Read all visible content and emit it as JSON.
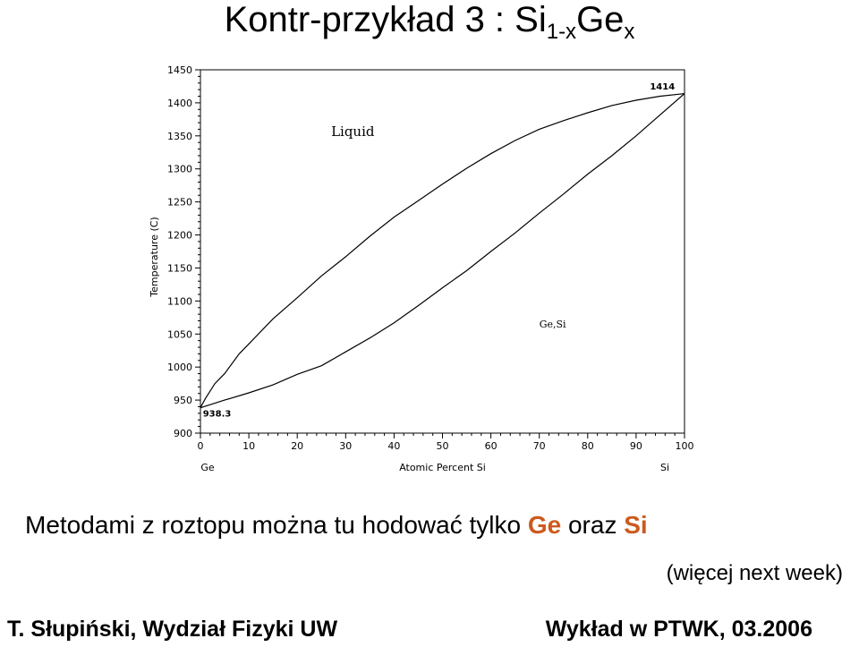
{
  "slide": {
    "title_main": "Kontr-przykład 3 : Si",
    "title_sub1": "1-x",
    "title_mid": "Ge",
    "title_sub2": "x",
    "body_prefix": "Metodami z roztopu można tu hodować tylko",
    "body_ge": "Ge",
    "body_and": "oraz",
    "body_si": "Si",
    "note": "(więcej next week)",
    "footer_left": "T. Słupiński, Wydział Fizyki UW",
    "footer_right": "Wykład w PTWK, 03.2006",
    "accent_color": "#cc5a1e"
  },
  "chart_data": {
    "type": "line",
    "title": "",
    "ylabel": "Temperature (C)",
    "xlabel": "Atomic Percent  Si",
    "x_end_left": "Ge",
    "x_end_right": "Si",
    "xlim": [
      0,
      100
    ],
    "ylim": [
      900,
      1450
    ],
    "xticks": [
      0,
      10,
      20,
      30,
      40,
      50,
      60,
      70,
      80,
      90,
      100
    ],
    "yticks": [
      900,
      950,
      1000,
      1050,
      1100,
      1150,
      1200,
      1250,
      1300,
      1350,
      1400,
      1450
    ],
    "grid": false,
    "series": [
      {
        "values_x": [
          0,
          1,
          3,
          5,
          8,
          10,
          15,
          20,
          25,
          30,
          35,
          40,
          45,
          50,
          55,
          60,
          65,
          70,
          75,
          80,
          85,
          90,
          95,
          100
        ],
        "values_y": [
          938.3,
          952,
          975,
          990,
          1020,
          1035,
          1073,
          1105,
          1138,
          1167,
          1198,
          1227,
          1252,
          1277,
          1301,
          1323,
          1343,
          1360,
          1373,
          1385,
          1396,
          1404,
          1410,
          1414
        ]
      },
      {
        "values_x": [
          0,
          5,
          10,
          15,
          20,
          25,
          30,
          35,
          40,
          45,
          50,
          55,
          60,
          65,
          70,
          75,
          80,
          85,
          90,
          95,
          100
        ],
        "values_y": [
          938.3,
          950,
          961,
          973,
          989,
          1002,
          1023,
          1044,
          1067,
          1093,
          1120,
          1146,
          1175,
          1203,
          1233,
          1262,
          1292,
          1320,
          1350,
          1382,
          1414
        ]
      }
    ],
    "annotations": [
      {
        "text": "Liquid",
        "x": 27,
        "y": 1350
      },
      {
        "text": "Ge,Si",
        "x": 70,
        "y": 1060
      },
      {
        "text": "938.3",
        "x": 0.5,
        "y": 925
      },
      {
        "text": "1414",
        "x": 98,
        "y": 1420
      }
    ]
  }
}
